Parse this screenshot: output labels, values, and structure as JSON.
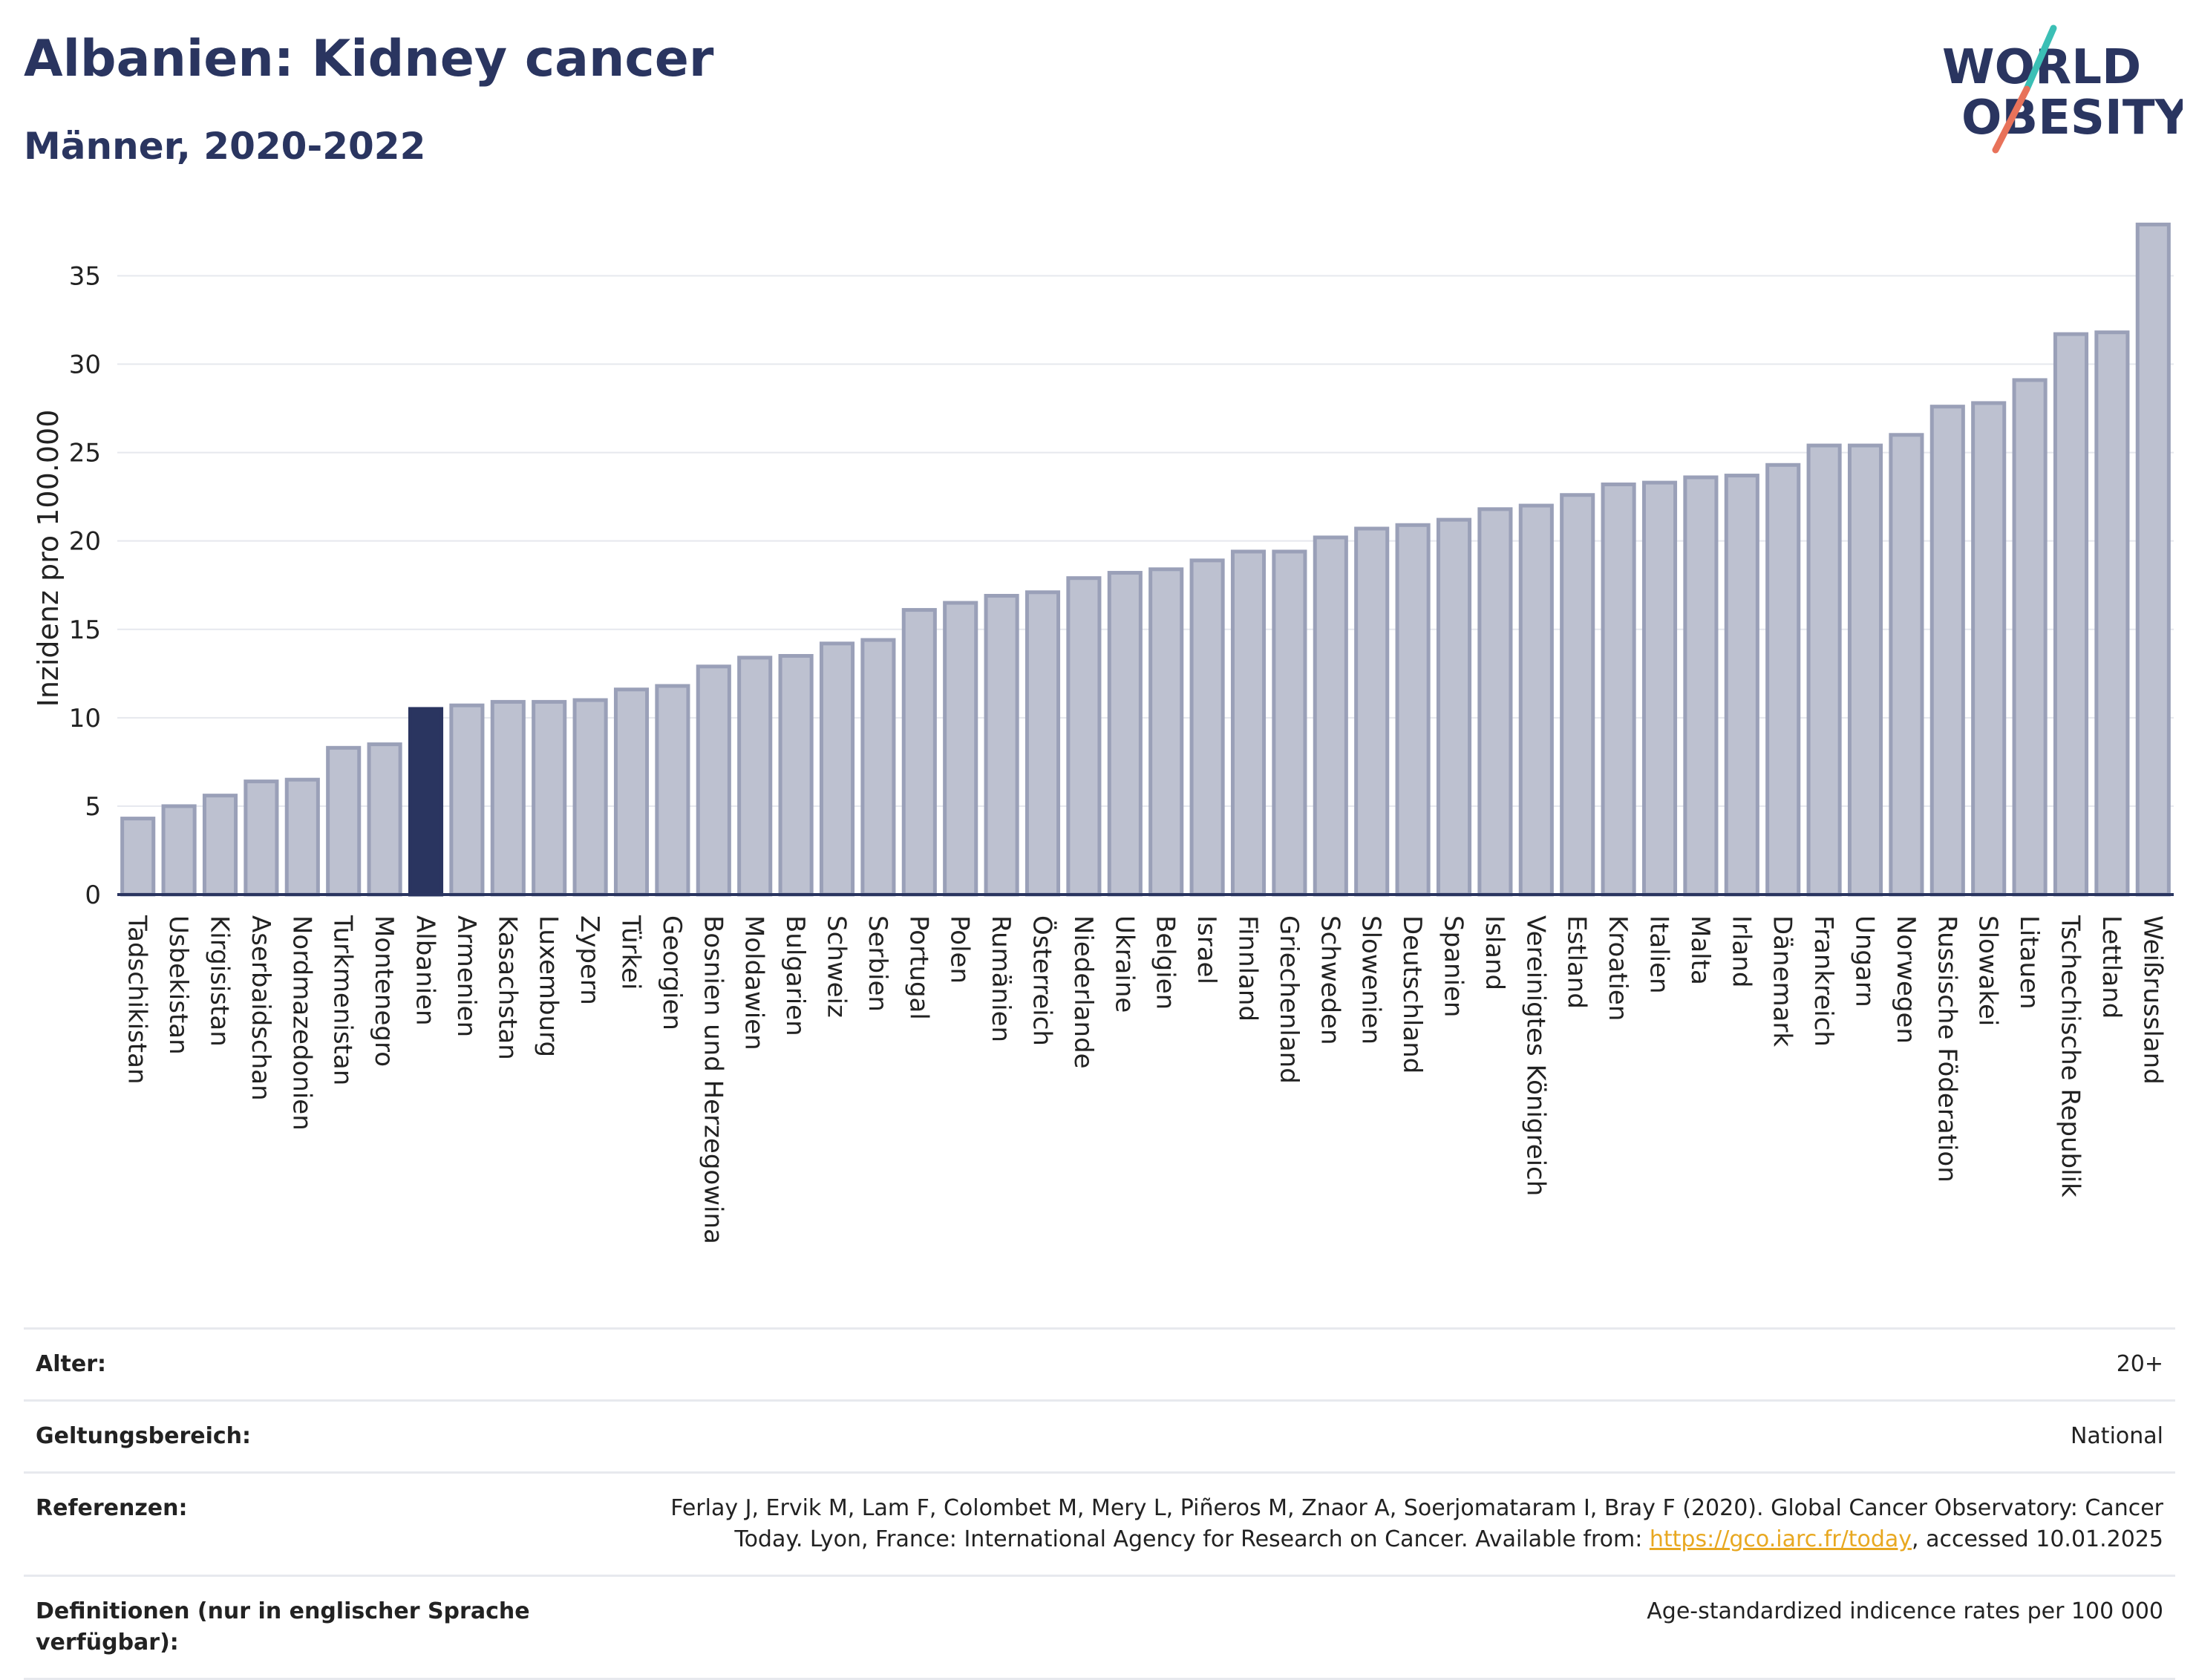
{
  "header": {
    "title": "Albanien: Kidney cancer",
    "subtitle": "Männer, 2020-2022"
  },
  "logo": {
    "line1": "WORLD",
    "line2": "OBESITY"
  },
  "colors": {
    "bar": "#bdc1d0",
    "bar_edge": "#9aa0b8",
    "highlight": "#2a3560",
    "text": "#2a3560",
    "grid": "#e6e8ee",
    "accent_teal": "#3bbfb5",
    "accent_coral": "#e8725a"
  },
  "chart_data": {
    "type": "bar",
    "ylabel": "Inzidenz pro 100.000",
    "ylim": [
      0,
      38
    ],
    "yticks": [
      0,
      5,
      10,
      15,
      20,
      25,
      30,
      35
    ],
    "highlight": "Albanien",
    "categories": [
      "Tadschikistan",
      "Usbekistan",
      "Kirgisistan",
      "Aserbaidschan",
      "Nordmazedonien",
      "Turkmenistan",
      "Montenegro",
      "Albanien",
      "Armenien",
      "Kasachstan",
      "Luxemburg",
      "Zypern",
      "Türkei",
      "Georgien",
      "Bosnien und Herzegowina",
      "Moldawien",
      "Bulgarien",
      "Schweiz",
      "Serbien",
      "Portugal",
      "Polen",
      "Rumänien",
      "Österreich",
      "Niederlande",
      "Ukraine",
      "Belgien",
      "Israel",
      "Finnland",
      "Griechenland",
      "Schweden",
      "Slowenien",
      "Deutschland",
      "Spanien",
      "Island",
      "Vereinigtes Königreich",
      "Estland",
      "Kroatien",
      "Italien",
      "Malta",
      "Irland",
      "Dänemark",
      "Frankreich",
      "Ungarn",
      "Norwegen",
      "Russische Föderation",
      "Slowakei",
      "Litauen",
      "Tschechische Republik",
      "Lettland",
      "Weißrussland"
    ],
    "values": [
      4.3,
      5.0,
      5.6,
      6.4,
      6.5,
      8.3,
      8.5,
      10.5,
      10.7,
      10.9,
      10.9,
      11.0,
      11.6,
      11.8,
      12.9,
      13.4,
      13.5,
      14.2,
      14.4,
      16.1,
      16.5,
      16.9,
      17.1,
      17.9,
      18.2,
      18.4,
      18.9,
      19.4,
      19.4,
      20.2,
      20.7,
      20.9,
      21.2,
      21.8,
      22.0,
      22.6,
      23.2,
      23.3,
      23.6,
      23.7,
      24.3,
      25.4,
      25.4,
      26.0,
      27.6,
      27.8,
      29.1,
      31.7,
      31.8,
      37.9
    ]
  },
  "meta": [
    {
      "label": "Alter:",
      "value": "20+"
    },
    {
      "label": "Geltungsbereich:",
      "value": "National"
    },
    {
      "label": "Referenzen:",
      "value_before": "Ferlay J, Ervik M, Lam F, Colombet M, Mery L, Piñeros M, Znaor A, Soerjomataram I, Bray F (2020). Global Cancer Observatory: Cancer Today. Lyon, France: International Agency for Research on Cancer. Available from: ",
      "link": "https://gco.iarc.fr/today",
      "value_after": ", accessed 10.01.2025"
    },
    {
      "label": "Definitionen (nur in englischer Sprache verfügbar):",
      "value": "Age-standardized indicence rates per 100 000"
    }
  ]
}
